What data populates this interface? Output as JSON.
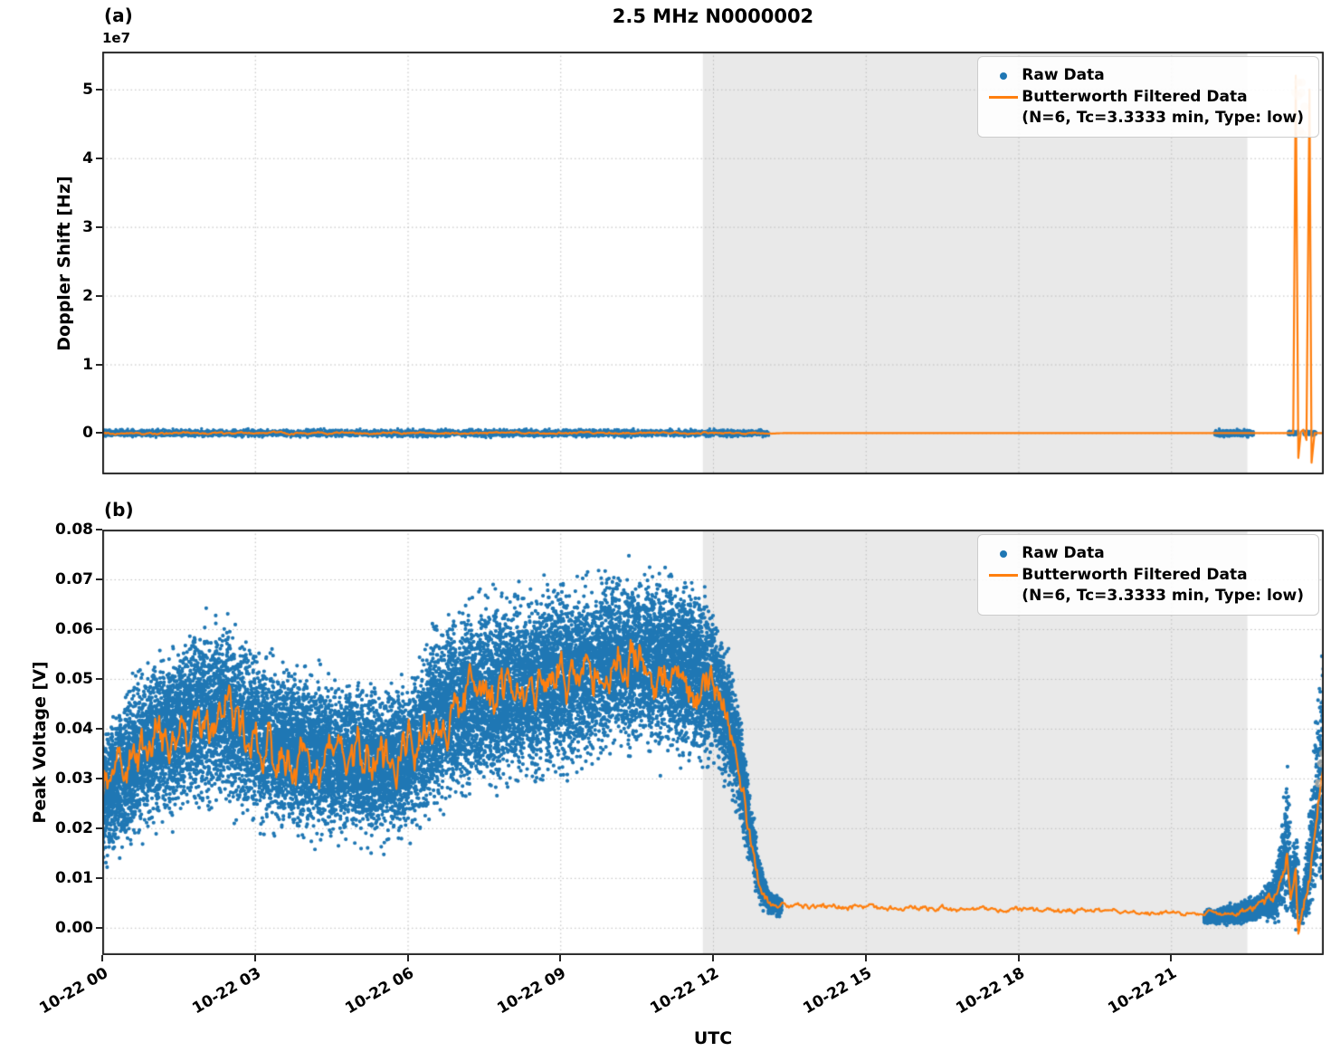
{
  "title": "2.5 MHz N0000002",
  "panels": {
    "a": {
      "label": "(a)",
      "ylabel": "Doppler Shift [Hz]",
      "offset_text": "1e7"
    },
    "b": {
      "label": "(b)",
      "ylabel": "Peak Voltage [V]",
      "xlabel": "UTC"
    }
  },
  "legend": {
    "raw_label": "Raw Data",
    "filtered_label": "Butterworth Filtered Data",
    "filtered_sublabel": "(N=6, Tc=3.3333 min, Type: low)"
  },
  "colors": {
    "raw": "#1f77b4",
    "filtered": "#ff7f0e",
    "shade": "#e9e9e9",
    "grid": "#bdbdbd",
    "spine": "#262626",
    "pale_marker": "#f7c79b"
  },
  "chart_data": [
    {
      "id": "doppler",
      "type": "scatter",
      "panel": "a",
      "ylabel": "Doppler Shift [Hz]",
      "y_scale_offset": "1e7",
      "xlim_hours": [
        0,
        24
      ],
      "ylim": [
        -6000000,
        55500000
      ],
      "yticks": [
        0,
        10000000,
        20000000,
        30000000,
        40000000,
        50000000
      ],
      "ytick_labels": [
        "0",
        "1",
        "2",
        "3",
        "4",
        "5"
      ],
      "xticks_hours": [
        0,
        3,
        6,
        9,
        12,
        15,
        18,
        21
      ],
      "xtick_labels": [],
      "grid": true,
      "legend_position": "upper right",
      "shaded_region_hours": [
        11.8,
        22.5
      ],
      "raw_segments": [
        {
          "n_points": 4500,
          "envelope": [
            [
              0,
              0,
              500000
            ],
            [
              13.1,
              0,
              500000
            ]
          ]
        },
        {
          "n_points": 700,
          "envelope": [
            [
              21.85,
              0,
              450000
            ],
            [
              22.62,
              0,
              450000
            ]
          ]
        },
        {
          "n_points": 140,
          "envelope": [
            [
              23.3,
              0,
              300000
            ],
            [
              23.5,
              0,
              300000
            ]
          ]
        },
        {
          "n_points": 140,
          "envelope": [
            [
              23.6,
              0,
              300000
            ],
            [
              23.85,
              0,
              300000
            ]
          ]
        }
      ],
      "filtered_line_points": [
        [
          0,
          0,
          120000
        ],
        [
          13.0,
          0,
          120000
        ],
        [
          13.3,
          0,
          0
        ],
        [
          21.6,
          0,
          0
        ],
        [
          23.33,
          0,
          0
        ],
        [
          23.4,
          0,
          0
        ],
        [
          23.45,
          52000000,
          0
        ],
        [
          23.5,
          -3600000,
          0
        ],
        [
          23.55,
          200000,
          0
        ],
        [
          23.6,
          500000,
          0
        ],
        [
          23.66,
          -1000000,
          0
        ],
        [
          23.72,
          50000000,
          0
        ],
        [
          23.76,
          -4300000,
          0
        ],
        [
          23.82,
          0,
          0
        ],
        [
          24,
          0,
          0
        ]
      ],
      "pale_markers": [
        [
          23.44,
          49500000
        ],
        [
          23.47,
          46000000
        ],
        [
          23.5,
          49000000
        ],
        [
          23.53,
          44000000
        ],
        [
          23.56,
          49500000
        ],
        [
          23.59,
          43500000
        ],
        [
          23.62,
          47500000
        ],
        [
          23.49,
          51000000
        ],
        [
          23.57,
          51000000
        ]
      ]
    },
    {
      "id": "peak_voltage",
      "type": "scatter",
      "panel": "b",
      "ylabel": "Peak Voltage [V]",
      "xlabel": "UTC",
      "xlim_hours": [
        0,
        24
      ],
      "ylim": [
        -0.0055,
        0.08
      ],
      "yticks": [
        0,
        0.01,
        0.02,
        0.03,
        0.04,
        0.05,
        0.06,
        0.07,
        0.08
      ],
      "ytick_labels": [
        "0.00",
        "0.01",
        "0.02",
        "0.03",
        "0.04",
        "0.05",
        "0.06",
        "0.07",
        "0.08"
      ],
      "xticks_hours": [
        0,
        3,
        6,
        9,
        12,
        15,
        18,
        21
      ],
      "xtick_labels": [
        "10-22 00",
        "10-22 03",
        "10-22 06",
        "10-22 09",
        "10-22 12",
        "10-22 15",
        "10-22 18",
        "10-22 21"
      ],
      "grid": true,
      "legend_position": "upper right",
      "shaded_region_hours": [
        11.8,
        22.5
      ],
      "raw_segments": [
        {
          "n_points": 20000,
          "envelope": [
            [
              0,
              0.026,
              0.012
            ],
            [
              0.4,
              0.031,
              0.013
            ],
            [
              0.8,
              0.036,
              0.014
            ],
            [
              1.2,
              0.038,
              0.014
            ],
            [
              1.6,
              0.041,
              0.015
            ],
            [
              2.0,
              0.043,
              0.015
            ],
            [
              2.4,
              0.043,
              0.015
            ],
            [
              2.8,
              0.04,
              0.015
            ],
            [
              3.2,
              0.037,
              0.014
            ],
            [
              3.6,
              0.036,
              0.014
            ],
            [
              4.0,
              0.035,
              0.014
            ],
            [
              4.4,
              0.034,
              0.014
            ],
            [
              4.8,
              0.034,
              0.013
            ],
            [
              5.2,
              0.033,
              0.013
            ],
            [
              5.6,
              0.033,
              0.013
            ],
            [
              6.0,
              0.034,
              0.013
            ],
            [
              6.4,
              0.04,
              0.015
            ],
            [
              6.8,
              0.044,
              0.016
            ],
            [
              7.2,
              0.046,
              0.016
            ],
            [
              7.6,
              0.047,
              0.016
            ],
            [
              8.0,
              0.048,
              0.016
            ],
            [
              8.4,
              0.048,
              0.016
            ],
            [
              8.8,
              0.05,
              0.016
            ],
            [
              9.2,
              0.05,
              0.016
            ],
            [
              9.6,
              0.051,
              0.016
            ],
            [
              10.0,
              0.053,
              0.015
            ],
            [
              10.4,
              0.054,
              0.015
            ],
            [
              10.8,
              0.053,
              0.015
            ],
            [
              11.2,
              0.053,
              0.015
            ],
            [
              11.6,
              0.051,
              0.015
            ],
            [
              12.0,
              0.049,
              0.014
            ],
            [
              12.3,
              0.042,
              0.012
            ],
            [
              12.5,
              0.034,
              0.01
            ],
            [
              12.7,
              0.022,
              0.007
            ],
            [
              12.9,
              0.01,
              0.004
            ],
            [
              13.1,
              0.005,
              0.002
            ],
            [
              13.35,
              0.004,
              0.0015
            ]
          ]
        },
        {
          "n_points": 2600,
          "envelope": [
            [
              21.65,
              0.002,
              0.0012
            ],
            [
              22.0,
              0.0025,
              0.0015
            ],
            [
              22.4,
              0.003,
              0.002
            ],
            [
              22.8,
              0.0045,
              0.0025
            ],
            [
              23.0,
              0.006,
              0.004
            ],
            [
              23.15,
              0.01,
              0.007
            ],
            [
              23.28,
              0.018,
              0.013
            ],
            [
              23.38,
              0.008,
              0.006
            ],
            [
              23.47,
              0.01,
              0.009
            ],
            [
              23.55,
              0.003,
              0.003
            ],
            [
              23.65,
              0.008,
              0.006
            ],
            [
              23.75,
              0.015,
              0.01
            ],
            [
              23.85,
              0.025,
              0.015
            ],
            [
              23.95,
              0.032,
              0.02
            ],
            [
              24.0,
              0.034,
              0.022
            ]
          ]
        }
      ],
      "filtered_line_points": [
        [
          0,
          0.027,
          0.004
        ],
        [
          0.3,
          0.032,
          0.004
        ],
        [
          0.7,
          0.035,
          0.004
        ],
        [
          1.0,
          0.038,
          0.004
        ],
        [
          1.4,
          0.037,
          0.004
        ],
        [
          1.8,
          0.043,
          0.004
        ],
        [
          2.1,
          0.042,
          0.004
        ],
        [
          2.4,
          0.044,
          0.004
        ],
        [
          2.7,
          0.04,
          0.004
        ],
        [
          3.0,
          0.038,
          0.004
        ],
        [
          3.4,
          0.036,
          0.004
        ],
        [
          3.8,
          0.034,
          0.004
        ],
        [
          4.2,
          0.034,
          0.004
        ],
        [
          4.6,
          0.035,
          0.004
        ],
        [
          5.0,
          0.033,
          0.004
        ],
        [
          5.4,
          0.034,
          0.004
        ],
        [
          5.8,
          0.032,
          0.004
        ],
        [
          6.1,
          0.034,
          0.004
        ],
        [
          6.4,
          0.04,
          0.004
        ],
        [
          6.7,
          0.044,
          0.004
        ],
        [
          7.0,
          0.045,
          0.004
        ],
        [
          7.3,
          0.049,
          0.004
        ],
        [
          7.6,
          0.047,
          0.004
        ],
        [
          8.0,
          0.049,
          0.004
        ],
        [
          8.4,
          0.048,
          0.004
        ],
        [
          8.8,
          0.05,
          0.004
        ],
        [
          9.2,
          0.049,
          0.004
        ],
        [
          9.6,
          0.052,
          0.004
        ],
        [
          10.0,
          0.054,
          0.004
        ],
        [
          10.4,
          0.053,
          0.004
        ],
        [
          10.8,
          0.052,
          0.004
        ],
        [
          11.2,
          0.053,
          0.004
        ],
        [
          11.6,
          0.05,
          0.004
        ],
        [
          12.0,
          0.048,
          0.003
        ],
        [
          12.3,
          0.041,
          0.003
        ],
        [
          12.5,
          0.032,
          0.002
        ],
        [
          12.7,
          0.02,
          0.002
        ],
        [
          12.9,
          0.009,
          0.001
        ],
        [
          13.1,
          0.005,
          0.0008
        ],
        [
          13.35,
          0.0045,
          0.0005
        ],
        [
          21.7,
          0.0028,
          0.0004
        ],
        [
          22.2,
          0.003,
          0.0005
        ],
        [
          22.7,
          0.004,
          0.0008
        ],
        [
          23.0,
          0.006,
          0.001
        ],
        [
          23.15,
          0.009,
          0.0015
        ],
        [
          23.28,
          0.015,
          0.002
        ],
        [
          23.35,
          0.007,
          0.001
        ],
        [
          23.45,
          0.012,
          0.002
        ],
        [
          23.5,
          -0.001,
          0.001
        ],
        [
          23.6,
          0.004,
          0.001
        ],
        [
          23.72,
          0.01,
          0.002
        ],
        [
          23.82,
          0.018,
          0.002
        ],
        [
          23.92,
          0.028,
          0.002
        ],
        [
          24,
          0.034,
          0.002
        ]
      ],
      "pale_markers": [
        [
          23.9,
          0.029
        ],
        [
          23.95,
          0.033
        ],
        [
          23.99,
          0.035
        ]
      ]
    }
  ]
}
